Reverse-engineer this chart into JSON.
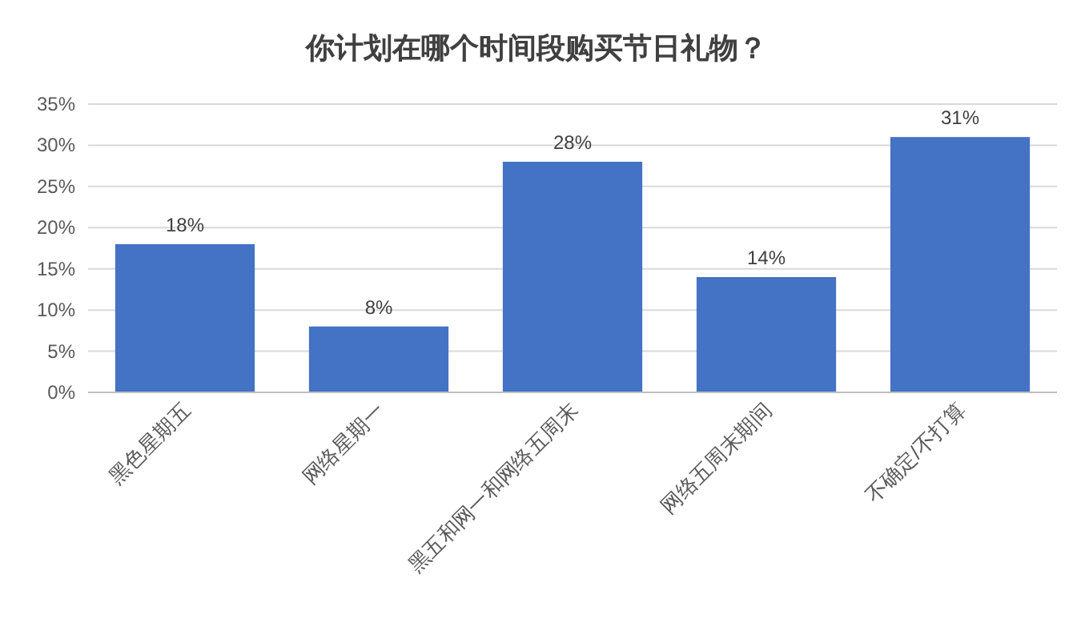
{
  "chart_data": {
    "type": "bar",
    "title": "你计划在哪个时间段购买节日礼物？",
    "categories": [
      "黑色星期五",
      "网络星期一",
      "黑五和网一和网络五周末",
      "网络五周末期间",
      "不确定/不打算"
    ],
    "values": [
      18,
      8,
      28,
      14,
      31
    ],
    "value_labels": [
      "18%",
      "8%",
      "28%",
      "14%",
      "31%"
    ],
    "color": "#4472c4",
    "ylim": [
      0,
      35
    ],
    "yticks": [
      {
        "value": 0,
        "label": "0%"
      },
      {
        "value": 5,
        "label": "5%"
      },
      {
        "value": 10,
        "label": "10%"
      },
      {
        "value": 15,
        "label": "15%"
      },
      {
        "value": 20,
        "label": "20%"
      },
      {
        "value": 25,
        "label": "25%"
      },
      {
        "value": 30,
        "label": "30%"
      },
      {
        "value": 35,
        "label": "35%"
      }
    ],
    "grid": "y"
  }
}
